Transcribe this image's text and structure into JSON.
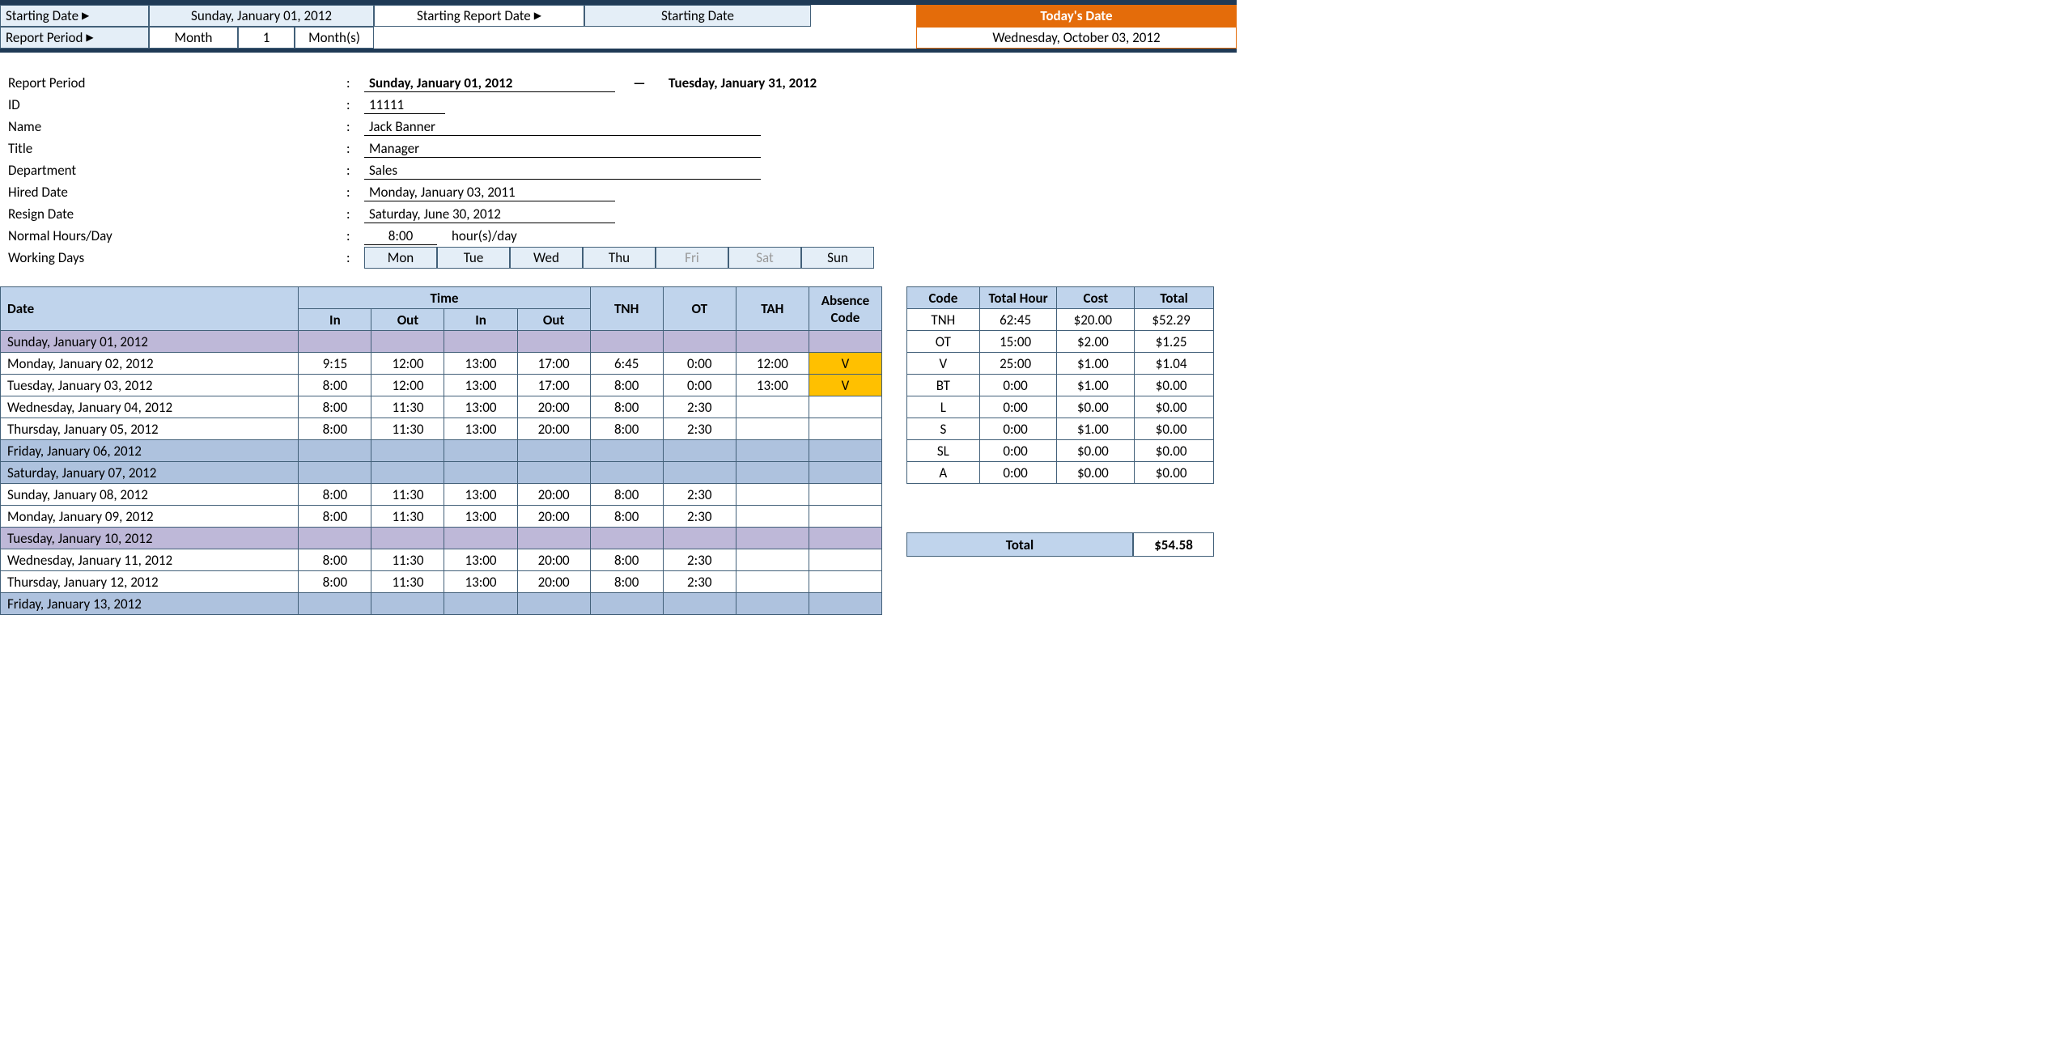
{
  "colors": {
    "dark_border": "#1f3a56",
    "header_bg": "#e4eef7",
    "table_header_bg": "#c0d4ec",
    "orange": "#e46c0a",
    "purple_row": "#beb8d8",
    "blue_row": "#aec2de",
    "yellow_cell": "#ffc000",
    "cell_border": "#426079"
  },
  "header": {
    "starting_date_label": "Starting Date",
    "starting_date_value": "Sunday, January 01, 2012",
    "starting_report_label": "Starting Report Date",
    "starting_report_value": "Starting Date",
    "report_period_label": "Report Period",
    "report_period_unit": "Month",
    "report_period_qty": "1",
    "report_period_suffix": "Month(s)",
    "today_label": "Today's Date",
    "today_value": "Wednesday, October 03, 2012"
  },
  "info": {
    "report_period_label": "Report Period",
    "period_start": "Sunday, January 01, 2012",
    "period_end": "Tuesday, January 31, 2012",
    "id_label": "ID",
    "id": "11111",
    "name_label": "Name",
    "name": "Jack Banner",
    "title_label": "Title",
    "title": "Manager",
    "dept_label": "Department",
    "dept": "Sales",
    "hired_label": "Hired Date",
    "hired": "Monday, January 03, 2011",
    "resign_label": "Resign Date",
    "resign": "Saturday, June 30, 2012",
    "normal_label": "Normal Hours/Day",
    "normal_hours": "8:00",
    "normal_unit": "hour(s)/day",
    "working_label": "Working Days",
    "days": [
      "Mon",
      "Tue",
      "Wed",
      "Thu",
      "Fri",
      "Sat",
      "Sun"
    ],
    "days_off": [
      false,
      false,
      false,
      false,
      true,
      true,
      false
    ]
  },
  "main": {
    "headers": {
      "date": "Date",
      "time": "Time",
      "in": "In",
      "out": "Out",
      "tnh": "TNH",
      "ot": "OT",
      "tah": "TAH",
      "abs": "Absence Code"
    },
    "rows": [
      {
        "date": "Sunday, January 01, 2012",
        "style": "purple",
        "in1": "",
        "out1": "",
        "in2": "",
        "out2": "",
        "tnh": "",
        "ot": "",
        "tah": "",
        "abs": ""
      },
      {
        "date": "Monday, January 02, 2012",
        "style": "",
        "in1": "9:15",
        "out1": "12:00",
        "in2": "13:00",
        "out2": "17:00",
        "tnh": "6:45",
        "ot": "0:00",
        "tah": "12:00",
        "abs": "V"
      },
      {
        "date": "Tuesday, January 03, 2012",
        "style": "",
        "in1": "8:00",
        "out1": "12:00",
        "in2": "13:00",
        "out2": "17:00",
        "tnh": "8:00",
        "ot": "0:00",
        "tah": "13:00",
        "abs": "V"
      },
      {
        "date": "Wednesday, January 04, 2012",
        "style": "",
        "in1": "8:00",
        "out1": "11:30",
        "in2": "13:00",
        "out2": "20:00",
        "tnh": "8:00",
        "ot": "2:30",
        "tah": "",
        "abs": ""
      },
      {
        "date": "Thursday, January 05, 2012",
        "style": "",
        "in1": "8:00",
        "out1": "11:30",
        "in2": "13:00",
        "out2": "20:00",
        "tnh": "8:00",
        "ot": "2:30",
        "tah": "",
        "abs": ""
      },
      {
        "date": "Friday, January 06, 2012",
        "style": "blue",
        "in1": "",
        "out1": "",
        "in2": "",
        "out2": "",
        "tnh": "",
        "ot": "",
        "tah": "",
        "abs": ""
      },
      {
        "date": "Saturday, January 07, 2012",
        "style": "blue",
        "in1": "",
        "out1": "",
        "in2": "",
        "out2": "",
        "tnh": "",
        "ot": "",
        "tah": "",
        "abs": ""
      },
      {
        "date": "Sunday, January 08, 2012",
        "style": "",
        "in1": "8:00",
        "out1": "11:30",
        "in2": "13:00",
        "out2": "20:00",
        "tnh": "8:00",
        "ot": "2:30",
        "tah": "",
        "abs": ""
      },
      {
        "date": "Monday, January 09, 2012",
        "style": "",
        "in1": "8:00",
        "out1": "11:30",
        "in2": "13:00",
        "out2": "20:00",
        "tnh": "8:00",
        "ot": "2:30",
        "tah": "",
        "abs": ""
      },
      {
        "date": "Tuesday, January 10, 2012",
        "style": "purple",
        "in1": "",
        "out1": "",
        "in2": "",
        "out2": "",
        "tnh": "",
        "ot": "",
        "tah": "",
        "abs": ""
      },
      {
        "date": "Wednesday, January 11, 2012",
        "style": "",
        "in1": "8:00",
        "out1": "11:30",
        "in2": "13:00",
        "out2": "20:00",
        "tnh": "8:00",
        "ot": "2:30",
        "tah": "",
        "abs": ""
      },
      {
        "date": "Thursday, January 12, 2012",
        "style": "",
        "in1": "8:00",
        "out1": "11:30",
        "in2": "13:00",
        "out2": "20:00",
        "tnh": "8:00",
        "ot": "2:30",
        "tah": "",
        "abs": ""
      },
      {
        "date": "Friday, January 13, 2012",
        "style": "blue",
        "in1": "",
        "out1": "",
        "in2": "",
        "out2": "",
        "tnh": "",
        "ot": "",
        "tah": "",
        "abs": ""
      }
    ]
  },
  "summary": {
    "headers": {
      "code": "Code",
      "hour": "Total Hour",
      "cost": "Cost",
      "total": "Total"
    },
    "rows": [
      {
        "code": "TNH",
        "hour": "62:45",
        "cost": "$20.00",
        "total": "$52.29"
      },
      {
        "code": "OT",
        "hour": "15:00",
        "cost": "$2.00",
        "total": "$1.25"
      },
      {
        "code": "V",
        "hour": "25:00",
        "cost": "$1.00",
        "total": "$1.04"
      },
      {
        "code": "BT",
        "hour": "0:00",
        "cost": "$1.00",
        "total": "$0.00"
      },
      {
        "code": "L",
        "hour": "0:00",
        "cost": "$0.00",
        "total": "$0.00"
      },
      {
        "code": "S",
        "hour": "0:00",
        "cost": "$1.00",
        "total": "$0.00"
      },
      {
        "code": "SL",
        "hour": "0:00",
        "cost": "$0.00",
        "total": "$0.00"
      },
      {
        "code": "A",
        "hour": "0:00",
        "cost": "$0.00",
        "total": "$0.00"
      }
    ],
    "grand_label": "Total",
    "grand_value": "$54.58"
  }
}
